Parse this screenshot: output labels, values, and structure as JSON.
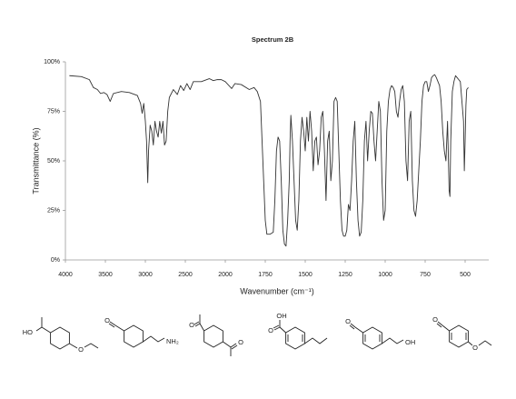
{
  "chart_data": {
    "type": "line",
    "title": "Spectrum 2B",
    "x_label": "Wavenumber (cm⁻¹)",
    "y_label": "Transmittance (%)",
    "color": "#333333",
    "x": [
      3950,
      3800,
      3700,
      3650,
      3600,
      3560,
      3520,
      3480,
      3440,
      3400,
      3300,
      3200,
      3100,
      3060,
      3040,
      3020,
      3000,
      2985,
      2970,
      2960,
      2940,
      2920,
      2900,
      2880,
      2860,
      2840,
      2820,
      2800,
      2780,
      2760,
      2740,
      2720,
      2700,
      2650,
      2600,
      2560,
      2520,
      2480,
      2440,
      2400,
      2300,
      2200,
      2150,
      2100,
      2050,
      2000,
      1960,
      1940,
      1900,
      1850,
      1820,
      1800,
      1780,
      1770,
      1760,
      1750,
      1740,
      1720,
      1700,
      1690,
      1680,
      1670,
      1660,
      1650,
      1640,
      1630,
      1620,
      1610,
      1600,
      1595,
      1590,
      1580,
      1570,
      1560,
      1550,
      1540,
      1530,
      1520,
      1510,
      1500,
      1490,
      1480,
      1470,
      1460,
      1450,
      1440,
      1430,
      1420,
      1410,
      1400,
      1390,
      1380,
      1370,
      1360,
      1350,
      1340,
      1330,
      1320,
      1310,
      1300,
      1290,
      1280,
      1270,
      1260,
      1250,
      1240,
      1230,
      1220,
      1210,
      1200,
      1190,
      1180,
      1170,
      1160,
      1150,
      1140,
      1130,
      1120,
      1110,
      1100,
      1090,
      1080,
      1070,
      1060,
      1050,
      1040,
      1030,
      1020,
      1010,
      1000,
      990,
      980,
      970,
      960,
      950,
      940,
      930,
      920,
      910,
      900,
      890,
      880,
      870,
      860,
      850,
      840,
      830,
      820,
      810,
      800,
      790,
      780,
      770,
      760,
      750,
      740,
      730,
      720,
      710,
      700,
      690,
      680,
      670,
      660,
      650,
      640,
      630,
      620,
      610,
      600,
      595,
      590,
      580,
      570,
      560,
      550,
      540,
      530,
      520,
      510,
      505,
      500,
      495,
      490,
      480
    ],
    "values": [
      93,
      92.5,
      91,
      87,
      86,
      84,
      84.5,
      83.5,
      80,
      84,
      85,
      84.5,
      83,
      79,
      74,
      79,
      70,
      60,
      39,
      55,
      68,
      65,
      58,
      70,
      65,
      62,
      70,
      64,
      70,
      58,
      60,
      75,
      82,
      86,
      83.5,
      88,
      85.5,
      89,
      86,
      90,
      90,
      91.5,
      90.5,
      91,
      91,
      90,
      86.5,
      89,
      88.5,
      86,
      87,
      85,
      80,
      60,
      40,
      20,
      13,
      13,
      14,
      30,
      55,
      62,
      60,
      40,
      15,
      8,
      7,
      20,
      40,
      60,
      73,
      60,
      40,
      20,
      15,
      30,
      60,
      72,
      65,
      55,
      72,
      60,
      75,
      65,
      45,
      60,
      62,
      48,
      55,
      72,
      75,
      55,
      30,
      60,
      65,
      40,
      50,
      80,
      82,
      80,
      55,
      30,
      15,
      12,
      12,
      15,
      28,
      25,
      40,
      60,
      70,
      40,
      20,
      12,
      14,
      30,
      60,
      70,
      50,
      65,
      75,
      74,
      60,
      50,
      65,
      80,
      75,
      40,
      20,
      25,
      65,
      80,
      86,
      88,
      87,
      85,
      75,
      72,
      80,
      86,
      88,
      80,
      50,
      40,
      70,
      75,
      40,
      25,
      22,
      30,
      45,
      60,
      80,
      88,
      90,
      90,
      85,
      88,
      92,
      93,
      93.5,
      92,
      90,
      88,
      80,
      65,
      55,
      50,
      70,
      35,
      32,
      60,
      85,
      90,
      93,
      92,
      91,
      90,
      80,
      70,
      45,
      60,
      78,
      86,
      87
    ],
    "xlim": [
      4000,
      350
    ],
    "xticks": [
      4000,
      3500,
      3000,
      2500,
      2000,
      1750,
      1500,
      1250,
      1000,
      750,
      500
    ],
    "ylim": [
      0,
      100
    ],
    "yticks": [
      {
        "value": 0,
        "label": "0%"
      },
      {
        "value": 25,
        "label": "25%"
      },
      {
        "value": 50,
        "label": "50%"
      },
      {
        "value": 75,
        "label": "75%"
      },
      {
        "value": 100,
        "label": "100%"
      }
    ]
  },
  "molecules": [
    {
      "atoms": [
        "HO",
        "O"
      ]
    },
    {
      "atoms": [
        "O",
        "NH₂"
      ]
    },
    {
      "atoms": [
        "O",
        "O"
      ]
    },
    {
      "atoms": [
        "OH",
        "O"
      ]
    },
    {
      "atoms": [
        "O",
        "OH"
      ]
    },
    {
      "atoms": [
        "O",
        "O"
      ]
    }
  ]
}
